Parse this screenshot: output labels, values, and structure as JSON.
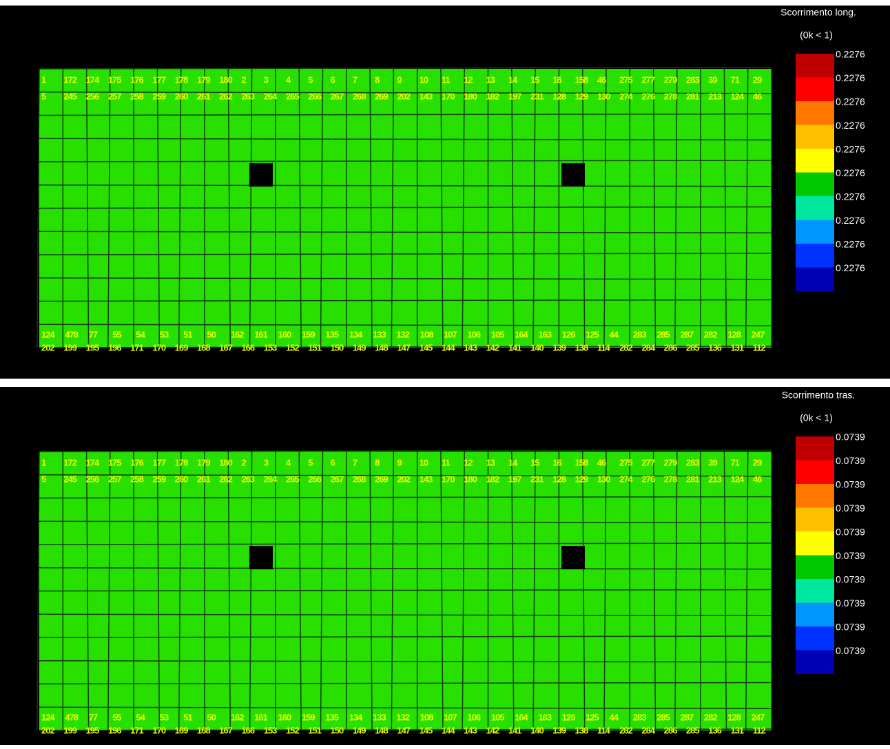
{
  "panels": [
    {
      "title": "Scorrimento long.",
      "condition": "(0k < 1)",
      "legend_values": [
        "0.2276",
        "0.2276",
        "0.2276",
        "0.2276",
        "0.2276",
        "0.2276",
        "0.2276",
        "0.2276",
        "0.2276",
        "0.2276"
      ]
    },
    {
      "title": "Scorrimento tras.",
      "condition": "(0k < 1)",
      "legend_values": [
        "0.0739",
        "0.0739",
        "0.0739",
        "0.0739",
        "0.0739",
        "0.0739",
        "0.0739",
        "0.0739",
        "0.0739",
        "0.0739"
      ]
    }
  ],
  "legend_colors": [
    "#c00000",
    "#ff0000",
    "#ff7800",
    "#ffc000",
    "#ffff00",
    "#00c800",
    "#00e8a0",
    "#0096ff",
    "#0032ff",
    "#0000b4"
  ],
  "mesh": {
    "rows": [
      [
        "1",
        "172",
        "174",
        "175",
        "176",
        "177",
        "178",
        "179",
        "180",
        "2",
        "3",
        "4",
        "5",
        "6",
        "7",
        "8",
        "9",
        "10",
        "11",
        "12",
        "13",
        "14",
        "15",
        "16",
        "158",
        "46",
        "275",
        "277",
        "279",
        "283",
        "39",
        "71",
        "29"
      ],
      [
        "5",
        "245",
        "256",
        "257",
        "258",
        "259",
        "260",
        "261",
        "262",
        "263",
        "264",
        "265",
        "266",
        "267",
        "268",
        "269",
        "202",
        "143",
        "170",
        "180",
        "182",
        "197",
        "231",
        "128",
        "129",
        "130",
        "274",
        "276",
        "278",
        "281",
        "213",
        "124",
        "46"
      ],
      [
        "124",
        "478",
        "77",
        "55",
        "54",
        "53",
        "51",
        "50",
        "162",
        "161",
        "160",
        "159",
        "135",
        "134",
        "133",
        "132",
        "108",
        "107",
        "106",
        "105",
        "164",
        "163",
        "126",
        "125",
        "44",
        "283",
        "285",
        "287",
        "282",
        "128",
        "247"
      ],
      [
        "202",
        "199",
        "195",
        "196",
        "171",
        "170",
        "169",
        "168",
        "167",
        "166",
        "153",
        "152",
        "151",
        "150",
        "149",
        "148",
        "147",
        "145",
        "144",
        "143",
        "142",
        "141",
        "140",
        "139",
        "138",
        "114",
        "282",
        "284",
        "286",
        "285",
        "136",
        "131",
        "112"
      ]
    ]
  }
}
